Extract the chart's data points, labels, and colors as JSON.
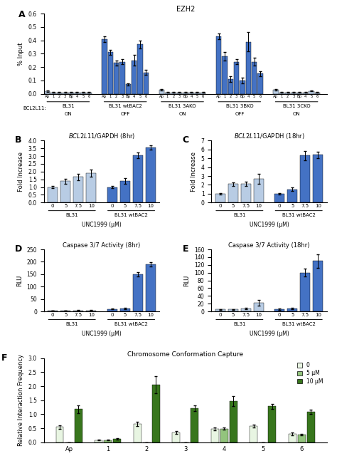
{
  "panel_A": {
    "title": "EZH2",
    "ylabel": "% Input",
    "ylim": [
      0,
      0.6
    ],
    "yticks": [
      0,
      0.1,
      0.2,
      0.3,
      0.4,
      0.5,
      0.6
    ],
    "groups": [
      {
        "label": "BL31",
        "bcl2l11": "ON",
        "xticks": [
          "Ap",
          "1",
          "2",
          "3",
          "Bp",
          "4",
          "5",
          "6"
        ],
        "values": [
          0.02,
          0.01,
          0.01,
          0.01,
          0.01,
          0.01,
          0.01,
          0.01
        ],
        "errors": [
          0.005,
          0.003,
          0.003,
          0.003,
          0.003,
          0.003,
          0.003,
          0.003
        ]
      },
      {
        "label": "BL31 wtBAC2",
        "bcl2l11": "OFF",
        "xticks": [
          "Ap",
          "1",
          "2",
          "3",
          "Bp",
          "4",
          "5",
          "6"
        ],
        "values": [
          0.41,
          0.31,
          0.23,
          0.24,
          0.07,
          0.25,
          0.37,
          0.16
        ],
        "errors": [
          0.02,
          0.02,
          0.02,
          0.02,
          0.01,
          0.04,
          0.03,
          0.02
        ]
      },
      {
        "label": "BL31 3AKO",
        "bcl2l11": "ON",
        "xticks": [
          "Ap",
          "1",
          "2",
          "3",
          "Bp",
          "4",
          "5",
          "6"
        ],
        "values": [
          0.03,
          0.01,
          0.01,
          0.01,
          0.01,
          0.01,
          0.01,
          0.01
        ],
        "errors": [
          0.005,
          0.003,
          0.003,
          0.003,
          0.003,
          0.003,
          0.003,
          0.003
        ]
      },
      {
        "label": "BL31 3BKO",
        "bcl2l11": "OFF",
        "xticks": [
          "Ap",
          "1",
          "2",
          "3",
          "Bp",
          "4",
          "5",
          "6"
        ],
        "values": [
          0.43,
          0.28,
          0.11,
          0.24,
          0.1,
          0.39,
          0.24,
          0.15
        ],
        "errors": [
          0.02,
          0.03,
          0.02,
          0.02,
          0.02,
          0.07,
          0.03,
          0.02
        ]
      },
      {
        "label": "BL31 3CKO",
        "bcl2l11": "ON",
        "xticks": [
          "Ap",
          "1",
          "2",
          "3",
          "Bp",
          "4",
          "5",
          "6"
        ],
        "values": [
          0.03,
          0.01,
          0.01,
          0.01,
          0.01,
          0.01,
          0.02,
          0.01
        ],
        "errors": [
          0.005,
          0.003,
          0.003,
          0.003,
          0.003,
          0.003,
          0.003,
          0.003
        ]
      }
    ],
    "color_on": "#b8cce4",
    "color_off": "#4472c4"
  },
  "panel_B": {
    "title": "$\\it{BCL2L11}$/GAPDH (8hr)",
    "ylabel": "Fold Increase",
    "ylim": [
      0,
      4
    ],
    "yticks": [
      0,
      0.5,
      1.0,
      1.5,
      2.0,
      2.5,
      3.0,
      3.5,
      4.0
    ],
    "groups": [
      "BL31",
      "BL31 wtBAC2"
    ],
    "xticks": [
      "0",
      "5",
      "7.5",
      "10",
      "0",
      "5",
      "7.5",
      "10"
    ],
    "xlabel": "UNC1999 (μM)",
    "values": [
      1.0,
      1.38,
      1.65,
      1.9,
      1.0,
      1.38,
      3.05,
      3.55
    ],
    "errors": [
      0.05,
      0.15,
      0.2,
      0.25,
      0.05,
      0.18,
      0.2,
      0.12
    ],
    "colors": [
      "#b8cce4",
      "#b8cce4",
      "#b8cce4",
      "#b8cce4",
      "#4472c4",
      "#4472c4",
      "#4472c4",
      "#4472c4"
    ]
  },
  "panel_C": {
    "title": "$\\it{BCL2L11}$/GAPDH (18hr)",
    "ylabel": "Fold Increase",
    "ylim": [
      0,
      7
    ],
    "yticks": [
      0,
      1,
      2,
      3,
      4,
      5,
      6,
      7
    ],
    "groups": [
      "BL31",
      "BL31 wtBAC2"
    ],
    "xticks": [
      "0",
      "5",
      "7.5",
      "10",
      "0",
      "5",
      "7.5",
      "10"
    ],
    "xlabel": "UNC1999 (μM)",
    "values": [
      1.0,
      2.1,
      2.1,
      2.7,
      1.0,
      1.5,
      5.3,
      5.4
    ],
    "errors": [
      0.05,
      0.2,
      0.25,
      0.55,
      0.05,
      0.2,
      0.55,
      0.35
    ],
    "colors": [
      "#b8cce4",
      "#b8cce4",
      "#b8cce4",
      "#b8cce4",
      "#4472c4",
      "#4472c4",
      "#4472c4",
      "#4472c4"
    ]
  },
  "panel_D": {
    "title": "Caspase 3/7 Activity (8hr)",
    "ylabel": "RLU",
    "ylim": [
      0,
      250
    ],
    "yticks": [
      0,
      50,
      100,
      150,
      200,
      250
    ],
    "groups": [
      "BL31",
      "BL31 wtBAC2"
    ],
    "xticks": [
      "0",
      "5",
      "7.5",
      "10",
      "0",
      "5",
      "7.5",
      "10"
    ],
    "xlabel": "UNC1999 (μM)",
    "values": [
      3,
      3,
      4,
      4,
      10,
      12,
      150,
      190
    ],
    "errors": [
      1,
      1,
      1,
      1,
      2,
      2,
      8,
      8
    ],
    "colors": [
      "#b8cce4",
      "#b8cce4",
      "#b8cce4",
      "#b8cce4",
      "#4472c4",
      "#4472c4",
      "#4472c4",
      "#4472c4"
    ]
  },
  "panel_E": {
    "title": "Caspase 3/7 Activity (18hr)",
    "ylabel": "RLU",
    "ylim": [
      0,
      160
    ],
    "yticks": [
      0,
      20,
      40,
      60,
      80,
      100,
      120,
      140,
      160
    ],
    "groups": [
      "BL31",
      "BL31 wtBAC2"
    ],
    "xticks": [
      "0",
      "5",
      "7.5",
      "10",
      "0",
      "5",
      "7.5",
      "10"
    ],
    "xlabel": "UNC1999 (μM)",
    "values": [
      5,
      5,
      8,
      22,
      6,
      8,
      100,
      130
    ],
    "errors": [
      1,
      1,
      2,
      8,
      2,
      2,
      10,
      18
    ],
    "colors": [
      "#b8cce4",
      "#b8cce4",
      "#b8cce4",
      "#b8cce4",
      "#4472c4",
      "#4472c4",
      "#4472c4",
      "#4472c4"
    ]
  },
  "panel_F": {
    "title": "Chromosome Conformation Capture",
    "ylabel": "Relative Interaction Frequency",
    "ylim": [
      0,
      3
    ],
    "yticks": [
      0,
      0.5,
      1.0,
      1.5,
      2.0,
      2.5,
      3.0
    ],
    "xticks": [
      "Ap",
      "1",
      "2",
      "3",
      "4",
      "5",
      "6"
    ],
    "legend": [
      "0",
      "5 μM",
      "10 μM"
    ],
    "colors": [
      "#e8f5e2",
      "#93c47d",
      "#38761d"
    ],
    "values_0": [
      0.55,
      0.08,
      0.65,
      0.35,
      0.48,
      0.58,
      0.3
    ],
    "errors_0": [
      0.06,
      0.01,
      0.07,
      0.04,
      0.05,
      0.06,
      0.04
    ],
    "values_5": [
      0.0,
      0.08,
      0.0,
      0.0,
      0.48,
      0.0,
      0.28
    ],
    "errors_5": [
      0.0,
      0.01,
      0.0,
      0.0,
      0.04,
      0.0,
      0.03
    ],
    "values_10": [
      1.18,
      0.12,
      2.05,
      1.22,
      1.47,
      1.28,
      1.08
    ],
    "errors_10": [
      0.15,
      0.02,
      0.3,
      0.1,
      0.17,
      0.1,
      0.08
    ]
  }
}
